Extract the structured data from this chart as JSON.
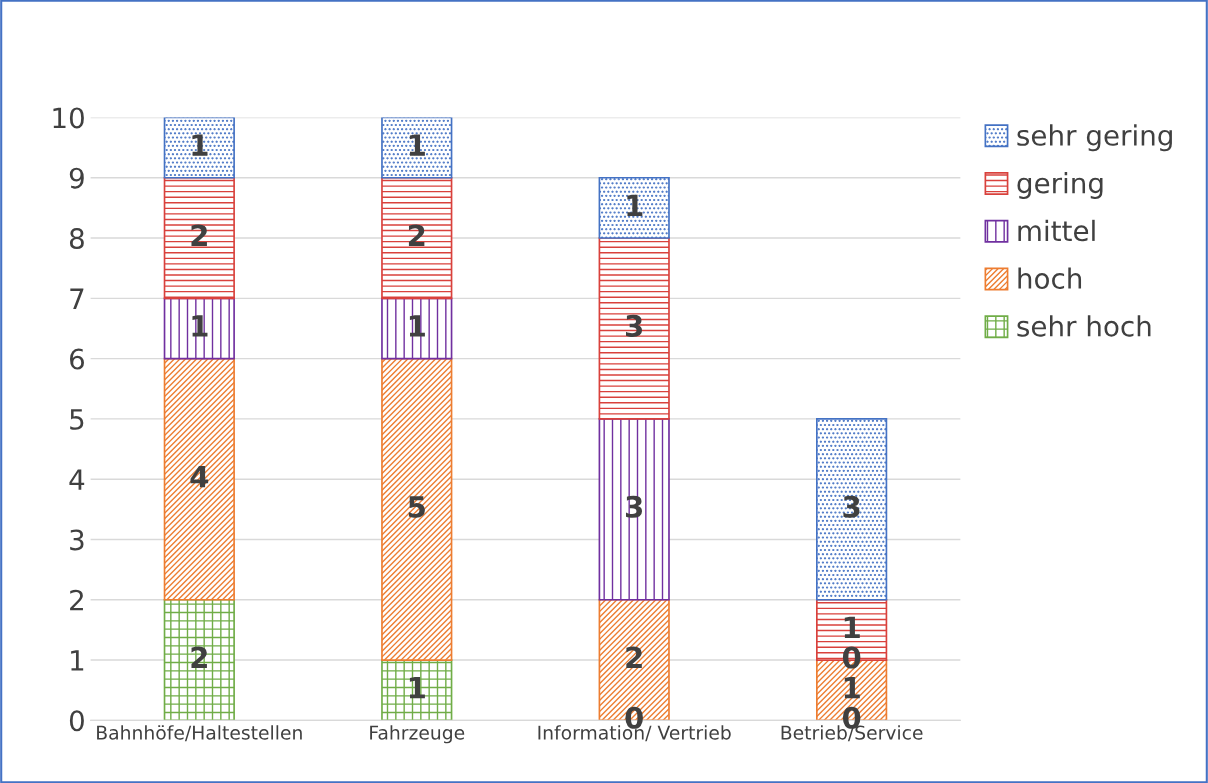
{
  "chart_data": {
    "type": "bar",
    "stacked": true,
    "categories": [
      "Bahnhöfe/Haltestellen",
      "Fahrzeuge",
      "Information/ Vertrieb",
      "Betrieb/Service"
    ],
    "series": [
      {
        "name": "sehr hoch",
        "color": "#70ad47",
        "values": [
          2,
          1,
          0,
          0
        ]
      },
      {
        "name": "hoch",
        "color": "#ed7d31",
        "values": [
          4,
          5,
          2,
          1
        ]
      },
      {
        "name": "mittel",
        "color": "#7030a0",
        "values": [
          1,
          1,
          3,
          0
        ]
      },
      {
        "name": "gering",
        "color": "#d9413c",
        "values": [
          2,
          2,
          3,
          1
        ]
      },
      {
        "name": "sehr gering",
        "color": "#4472c4",
        "values": [
          1,
          1,
          1,
          3
        ]
      }
    ],
    "ylim": [
      0,
      10
    ],
    "yticks": [
      0,
      1,
      2,
      3,
      4,
      5,
      6,
      7,
      8,
      9,
      10
    ],
    "grid": "y",
    "legend": "right",
    "data_labels": true
  }
}
